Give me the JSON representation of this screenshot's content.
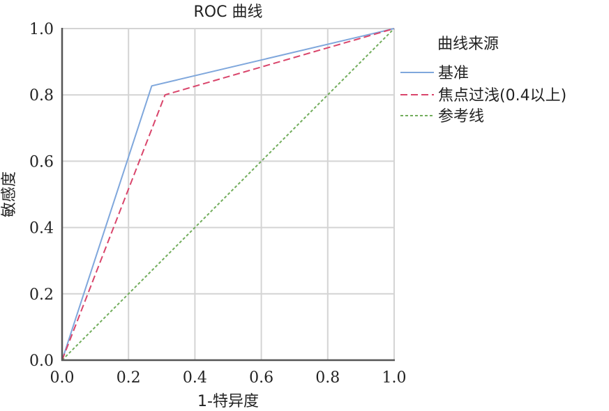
{
  "chart_data": {
    "type": "line",
    "title": "ROC 曲线",
    "xlabel": "1-特异度",
    "ylabel": "敏感度",
    "xlim": [
      0,
      1
    ],
    "ylim": [
      0,
      1
    ],
    "x_ticks": [
      "0.0",
      "0.2",
      "0.4",
      "0.6",
      "0.8",
      "1.0"
    ],
    "y_ticks": [
      "0.0",
      "0.2",
      "0.4",
      "0.6",
      "0.8",
      "1.0"
    ],
    "grid": true,
    "legend": {
      "title": "曲线来源",
      "placement": "right"
    },
    "series": [
      {
        "name": "基准",
        "color": "#7fa7dc",
        "dash": "solid",
        "x": [
          0.0,
          0.27,
          1.0
        ],
        "y": [
          0.0,
          0.827,
          1.0
        ]
      },
      {
        "name": "焦点过浅(0.4以上)",
        "color": "#d9456b",
        "dash": "dashed",
        "x": [
          0.0,
          0.31,
          1.0
        ],
        "y": [
          0.0,
          0.8,
          1.0
        ]
      },
      {
        "name": "参考线",
        "color": "#72ad5c",
        "dash": "dotted",
        "x": [
          0.0,
          1.0
        ],
        "y": [
          0.0,
          1.0
        ]
      }
    ]
  }
}
